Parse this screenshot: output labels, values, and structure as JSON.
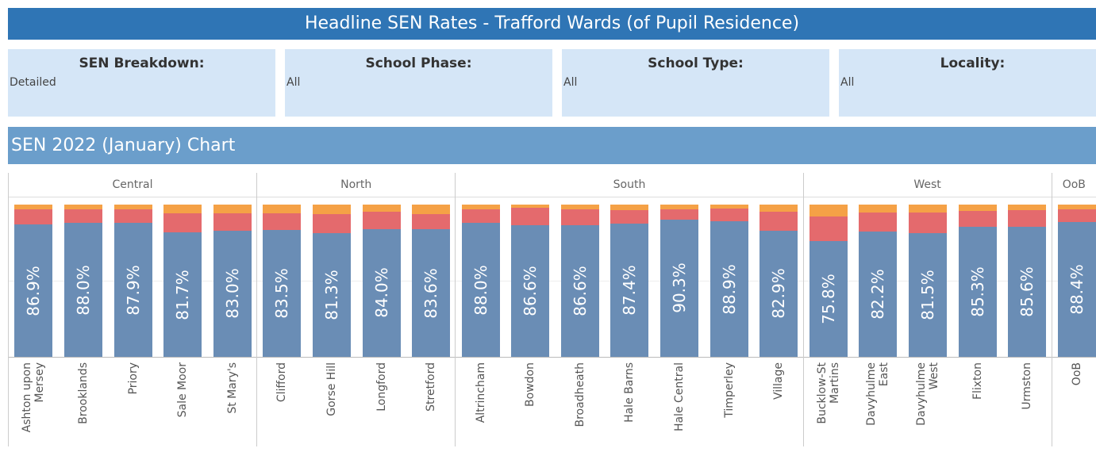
{
  "header": {
    "title": "Headline SEN Rates - Trafford Wards (of Pupil Residence)"
  },
  "filters": [
    {
      "label": "SEN Breakdown:",
      "value": "Detailed"
    },
    {
      "label": "School Phase:",
      "value": "All"
    },
    {
      "label": "School Type:",
      "value": "All"
    },
    {
      "label": "Locality:",
      "value": "All"
    }
  ],
  "chart_data": {
    "type": "stacked_bar",
    "title": "SEN 2022 (January) Chart",
    "ylim": [
      0,
      100
    ],
    "ygrid": [
      50
    ],
    "panels": [
      {
        "name": "Central",
        "categories": [
          "Ashton upon Mersey",
          "Brooklands",
          "Priory",
          "Sale Moor",
          "St Mary's"
        ]
      },
      {
        "name": "North",
        "categories": [
          "Clifford",
          "Gorse Hill",
          "Longford",
          "Stretford"
        ]
      },
      {
        "name": "South",
        "categories": [
          "Altrincham",
          "Bowdon",
          "Broadheath",
          "Hale Barns",
          "Hale Central",
          "Timperley",
          "Village"
        ]
      },
      {
        "name": "West",
        "categories": [
          "Bucklow-St Martins",
          "Davyhulme East",
          "Davyhulme West",
          "Flixton",
          "Urmston"
        ]
      },
      {
        "name": "OoB",
        "categories": [
          "OoB"
        ]
      }
    ],
    "series": [
      {
        "color": "#6a8db5",
        "values": [
          86.9,
          88.0,
          87.9,
          81.7,
          83.0,
          83.5,
          81.3,
          84.0,
          83.6,
          88.0,
          86.6,
          86.6,
          87.4,
          90.3,
          88.9,
          82.9,
          75.8,
          82.2,
          81.5,
          85.3,
          85.6,
          88.4
        ],
        "value_labels": [
          "86.9%",
          "88.0%",
          "87.9%",
          "81.7%",
          "83.0%",
          "83.5%",
          "81.3%",
          "84.0%",
          "83.6%",
          "88.0%",
          "86.6%",
          "86.6%",
          "87.4%",
          "90.3%",
          "88.9%",
          "82.9%",
          "75.8%",
          "82.2%",
          "81.5%",
          "85.3%",
          "85.6%",
          "88.4%"
        ]
      },
      {
        "color": "#e46a6d",
        "values": [
          10.1,
          9.0,
          9.1,
          12.8,
          11.5,
          11.0,
          12.7,
          11.5,
          10.4,
          9.0,
          11.4,
          10.4,
          9.1,
          6.7,
          8.6,
          12.6,
          16.2,
          12.8,
          13.5,
          10.7,
          10.9,
          8.6
        ]
      },
      {
        "color": "#f5a146",
        "values": [
          3.0,
          3.0,
          3.0,
          5.5,
          5.5,
          5.5,
          6.0,
          4.5,
          6.0,
          3.0,
          2.0,
          3.0,
          3.5,
          3.0,
          2.5,
          4.5,
          8.0,
          5.0,
          5.0,
          4.0,
          3.5,
          3.0
        ]
      }
    ]
  }
}
